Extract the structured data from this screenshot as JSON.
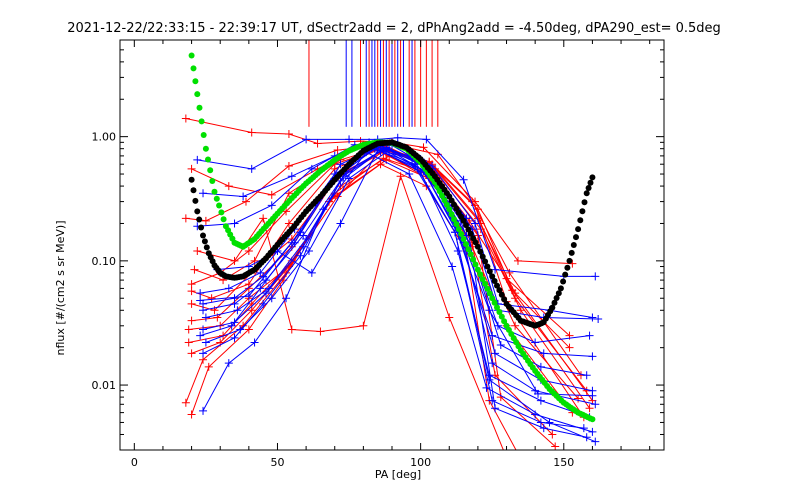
{
  "chart_data": {
    "type": "scatter",
    "title": "2021-12-22/22:33:15 - 22:39:17 UT, dSectr2add = 2, dPhAng2add = -4.50deg, dPA290_est=   0.5deg",
    "xlabel": "PA [deg]",
    "ylabel": "nflux [#/(cm2 s sr MeV)]",
    "xlim": [
      -5,
      185
    ],
    "ylim": [
      0.003,
      6
    ],
    "yscale": "log",
    "grid": false,
    "x_ticks": [
      {
        "value": 0,
        "label": "0"
      },
      {
        "value": 50,
        "label": "50"
      },
      {
        "value": 100,
        "label": "100"
      },
      {
        "value": 150,
        "label": "150"
      }
    ],
    "y_ticks": [
      {
        "value": 0.01,
        "label": "0.01"
      },
      {
        "value": 0.1,
        "label": "0.10"
      },
      {
        "value": 1,
        "label": "1.00"
      }
    ],
    "colors": {
      "red": "#ff0000",
      "blue": "#0000ff",
      "green": "#00e000",
      "black": "#000000"
    },
    "vertical_markers": {
      "y_from": 1.2,
      "y_to": 6,
      "red_x": [
        61,
        79,
        82,
        85,
        87,
        89,
        91,
        93,
        96,
        98,
        100,
        102,
        104,
        106
      ],
      "blue_x": [
        74,
        76,
        81,
        83,
        84,
        86,
        88,
        90,
        92,
        94,
        97
      ]
    },
    "series": [
      {
        "color": "red",
        "curves": [
          {
            "x": [
              18,
              41,
              54,
              64,
              79,
              90,
              101,
              119,
              134,
              153
            ],
            "y": [
              1.4,
              1.08,
              1.05,
              0.88,
              0.92,
              0.9,
              0.82,
              0.3,
              0.1,
              0.095
            ]
          },
          {
            "x": [
              20,
              33,
              48,
              64,
              80,
              90,
              104,
              120,
              133,
              152
            ],
            "y": [
              0.55,
              0.4,
              0.34,
              0.55,
              0.85,
              0.88,
              0.6,
              0.22,
              0.055,
              0.02
            ]
          },
          {
            "x": [
              18,
              25,
              39,
              54,
              71,
              87,
              105,
              121,
              133,
              158
            ],
            "y": [
              0.22,
              0.21,
              0.3,
              0.58,
              0.78,
              0.86,
              0.55,
              0.2,
              0.05,
              0.009
            ]
          },
          {
            "x": [
              20,
              27,
              40,
              54,
              70,
              86,
              103,
              120,
              132,
              160
            ],
            "y": [
              0.057,
              0.05,
              0.065,
              0.2,
              0.55,
              0.8,
              0.62,
              0.26,
              0.058,
              0.0075
            ]
          },
          {
            "x": [
              20,
              28,
              42,
              55,
              72,
              88,
              103,
              119,
              130,
              157
            ],
            "y": [
              0.045,
              0.04,
              0.085,
              0.15,
              0.5,
              0.8,
              0.63,
              0.28,
              0.047,
              0.0055
            ]
          },
          {
            "x": [
              20,
              29,
              40,
              55,
              70,
              88,
              104,
              121,
              135,
              159
            ],
            "y": [
              0.033,
              0.035,
              0.06,
              0.13,
              0.45,
              0.78,
              0.56,
              0.18,
              0.04,
              0.0065
            ]
          },
          {
            "x": [
              19,
              30,
              40,
              54,
              71,
              86,
              103,
              119,
              133,
              155
            ],
            "y": [
              0.028,
              0.03,
              0.05,
              0.09,
              0.33,
              0.75,
              0.48,
              0.15,
              0.03,
              0.0078
            ]
          },
          {
            "x": [
              19,
              31,
              41,
              55,
              72,
              89,
              104,
              118,
              130,
              153
            ],
            "y": [
              0.022,
              0.025,
              0.045,
              0.1,
              0.4,
              0.7,
              0.44,
              0.13,
              0.03,
              0.006
            ]
          },
          {
            "x": [
              20,
              30,
              41,
              54,
              70,
              87,
              104,
              120,
              128,
              147
            ],
            "y": [
              0.018,
              0.022,
              0.04,
              0.09,
              0.35,
              0.67,
              0.5,
              0.16,
              0.008,
              0.0032
            ]
          },
          {
            "x": [
              18,
              24,
              38,
              53,
              69,
              88,
              103,
              118,
              126,
              146
            ],
            "y": [
              0.0072,
              0.016,
              0.03,
              0.08,
              0.32,
              0.65,
              0.46,
              0.14,
              0.012,
              0.004
            ]
          },
          {
            "x": [
              20,
              26,
              40,
              52,
              68,
              86,
              102,
              116,
              124,
              134
            ],
            "y": [
              0.0058,
              0.014,
              0.028,
              0.07,
              0.3,
              0.6,
              0.4,
              0.12,
              0.0075,
              0.0028
            ]
          },
          {
            "x": [
              20,
              30,
              40,
              53,
              70,
              87,
              102,
              117,
              130,
              152
            ],
            "y": [
              0.065,
              0.08,
              0.12,
              0.25,
              0.6,
              0.82,
              0.59,
              0.21,
              0.072,
              0.025
            ]
          },
          {
            "x": [
              22,
              35,
              45,
              55,
              65,
              80,
              93,
              110,
              130,
              155
            ],
            "y": [
              0.12,
              0.1,
              0.22,
              0.028,
              0.027,
              0.03,
              0.48,
              0.035,
              0.0026,
              0.0025
            ]
          },
          {
            "x": [
              21,
              31,
              42,
              54,
              72,
              90,
              106,
              118,
              131,
              156
            ],
            "y": [
              0.085,
              0.07,
              0.1,
              0.35,
              0.65,
              0.87,
              0.72,
              0.3,
              0.08,
              0.012
            ]
          }
        ]
      },
      {
        "color": "blue",
        "curves": [
          {
            "x": [
              22,
              41,
              60,
              75,
              85,
              92,
              102,
              115,
              126,
              150,
              161
            ],
            "y": [
              0.65,
              0.55,
              0.95,
              0.95,
              0.95,
              0.98,
              0.95,
              0.45,
              0.085,
              0.075,
              0.075
            ]
          },
          {
            "x": [
              24,
              38,
              55,
              70,
              82,
              92,
              104,
              119,
              127,
              145,
              160
            ],
            "y": [
              0.35,
              0.33,
              0.48,
              0.7,
              0.9,
              0.87,
              0.58,
              0.2,
              0.045,
              0.04,
              0.035
            ]
          },
          {
            "x": [
              22,
              35,
              48,
              62,
              77,
              90,
              104,
              118,
              127,
              143,
              162
            ],
            "y": [
              0.19,
              0.2,
              0.28,
              0.55,
              0.86,
              0.85,
              0.55,
              0.18,
              0.04,
              0.035,
              0.034
            ]
          },
          {
            "x": [
              23,
              33,
              44,
              56,
              70,
              85,
              100,
              114,
              127,
              140,
              159
            ],
            "y": [
              0.055,
              0.06,
              0.08,
              0.18,
              0.5,
              0.82,
              0.66,
              0.21,
              0.03,
              0.022,
              0.025
            ]
          },
          {
            "x": [
              24,
              35,
              45,
              58,
              72,
              86,
              99,
              112,
              125,
              143,
              160
            ],
            "y": [
              0.045,
              0.05,
              0.075,
              0.17,
              0.6,
              0.84,
              0.64,
              0.19,
              0.025,
              0.018,
              0.017
            ]
          },
          {
            "x": [
              25,
              36,
              47,
              60,
              74,
              88,
              102,
              116,
              128,
              142,
              158
            ],
            "y": [
              0.035,
              0.04,
              0.06,
              0.15,
              0.52,
              0.81,
              0.56,
              0.16,
              0.021,
              0.014,
              0.012
            ]
          },
          {
            "x": [
              24,
              35,
              46,
              59,
              73,
              87,
              101,
              114,
              126,
              142,
              160
            ],
            "y": [
              0.028,
              0.032,
              0.055,
              0.13,
              0.48,
              0.79,
              0.53,
              0.15,
              0.018,
              0.011,
              0.009
            ]
          },
          {
            "x": [
              25,
              37,
              48,
              61,
              75,
              89,
              103,
              115,
              125,
              140,
              161
            ],
            "y": [
              0.022,
              0.028,
              0.05,
              0.12,
              0.46,
              0.78,
              0.5,
              0.14,
              0.015,
              0.009,
              0.007
            ]
          },
          {
            "x": [
              24,
              35,
              45,
              58,
              72,
              86,
              100,
              113,
              124,
              142,
              159
            ],
            "y": [
              0.018,
              0.024,
              0.045,
              0.11,
              0.44,
              0.77,
              0.52,
              0.12,
              0.012,
              0.0075,
              0.0055
            ]
          },
          {
            "x": [
              24,
              33,
              42,
              53,
              66,
              81,
              96,
              111,
              123,
              140,
              160
            ],
            "y": [
              0.0062,
              0.015,
              0.022,
              0.05,
              0.26,
              0.75,
              0.5,
              0.09,
              0.0095,
              0.0058,
              0.0042
            ]
          },
          {
            "x": [
              23,
              34,
              44,
              56,
              70,
              84,
              98,
              112,
              124,
              145,
              161
            ],
            "y": [
              0.025,
              0.03,
              0.06,
              0.14,
              0.46,
              0.8,
              0.57,
              0.17,
              0.011,
              0.005,
              0.0035
            ]
          },
          {
            "x": [
              24,
              35,
              46,
              59,
              74,
              88,
              102,
              116,
              126,
              143,
              158
            ],
            "y": [
              0.04,
              0.045,
              0.07,
              0.16,
              0.52,
              0.82,
              0.6,
              0.22,
              0.0065,
              0.0045,
              0.0038
            ]
          },
          {
            "x": [
              29,
              40,
              50,
              62,
              72,
              85,
              98,
              112,
              125,
              142,
              157
            ],
            "y": [
              0.085,
              0.09,
              0.12,
              0.08,
              0.2,
              0.78,
              0.6,
              0.17,
              0.0075,
              0.005,
              0.0045
            ]
          },
          {
            "x": [
              23,
              40,
              55,
              70,
              84,
              97,
              110,
              124,
              141,
              160
            ],
            "y": [
              0.048,
              0.052,
              0.14,
              0.46,
              0.8,
              0.66,
              0.28,
              0.04,
              0.0085,
              0.0082
            ]
          }
        ]
      },
      {
        "color": "green",
        "style": "dots",
        "x": [
          20,
          22,
          25,
          28,
          32,
          35,
          38,
          42,
          46,
          50,
          55,
          60,
          65,
          70,
          75,
          80,
          85,
          90,
          95,
          100,
          105,
          110,
          115,
          120,
          125,
          130,
          135,
          140,
          145,
          150,
          155,
          160
        ],
        "y": [
          4.5,
          2.2,
          0.8,
          0.36,
          0.19,
          0.14,
          0.13,
          0.15,
          0.19,
          0.24,
          0.32,
          0.42,
          0.53,
          0.65,
          0.77,
          0.86,
          0.9,
          0.89,
          0.8,
          0.62,
          0.43,
          0.26,
          0.15,
          0.085,
          0.05,
          0.03,
          0.019,
          0.013,
          0.0093,
          0.0072,
          0.006,
          0.0053
        ]
      },
      {
        "color": "black",
        "style": "dots",
        "x": [
          20,
          22,
          24,
          26,
          28,
          30,
          32,
          35,
          38,
          42,
          46,
          50,
          55,
          60,
          65,
          70,
          75,
          80,
          85,
          90,
          95,
          100,
          105,
          110,
          115,
          120,
          125,
          130,
          135,
          140,
          143,
          146,
          149,
          152,
          155,
          158,
          160
        ],
        "y": [
          0.45,
          0.25,
          0.16,
          0.115,
          0.092,
          0.08,
          0.075,
          0.073,
          0.075,
          0.085,
          0.105,
          0.135,
          0.18,
          0.25,
          0.33,
          0.45,
          0.6,
          0.77,
          0.88,
          0.9,
          0.82,
          0.66,
          0.48,
          0.33,
          0.21,
          0.13,
          0.075,
          0.045,
          0.033,
          0.03,
          0.032,
          0.042,
          0.06,
          0.1,
          0.18,
          0.35,
          0.47
        ]
      }
    ]
  }
}
